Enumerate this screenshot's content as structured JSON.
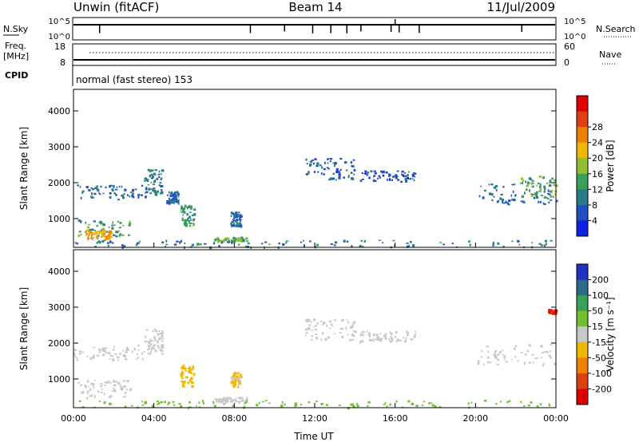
{
  "header": {
    "station": "Unwin (fitACF)",
    "beam": "Beam 14",
    "date": "11/Jul/2009"
  },
  "panels": {
    "nsky": {
      "label": "N.Sky",
      "left_top": "10^5",
      "left_bottom": "10^0",
      "right_top": "10^5",
      "right_bottom": "10^0",
      "right_label": "N.Search"
    },
    "freq": {
      "label_top": "Freq.",
      "label_unit": "[MHz]",
      "left_top": "18",
      "left_bottom": "8",
      "right_top": "60",
      "right_bottom": "0",
      "right_label": "Nave"
    },
    "cpid": {
      "label": "CPID",
      "text": "normal (fast stereo) 153"
    }
  },
  "chart_data": [
    {
      "type": "heatmap",
      "name": "power",
      "ylabel": "Slant Range [km]",
      "y_ticks": [
        1000,
        2000,
        3000,
        4000
      ],
      "ylim": [
        200,
        4600
      ],
      "colorbar": {
        "label": "Power [dB]",
        "ticks": [
          "4",
          "8",
          "12",
          "16",
          "20",
          "24",
          "28"
        ],
        "colors": [
          "#1020e0",
          "#2050c0",
          "#2a7a8a",
          "#38a058",
          "#90c030",
          "#f0b800",
          "#f08000",
          "#e04010",
          "#e00000"
        ]
      },
      "regions": [
        {
          "t0": 0.0,
          "t1": 3.6,
          "r0": 1550,
          "r1": 1950,
          "value": 8
        },
        {
          "t0": 0.2,
          "t1": 2.8,
          "r0": 500,
          "r1": 1000,
          "value": 14
        },
        {
          "t0": 0.6,
          "t1": 1.9,
          "r0": 450,
          "r1": 700,
          "value": 24
        },
        {
          "t0": 3.5,
          "t1": 4.4,
          "r0": 1700,
          "r1": 2400,
          "value": 10
        },
        {
          "t0": 4.6,
          "t1": 5.2,
          "r0": 1450,
          "r1": 1800,
          "value": 7
        },
        {
          "t0": 5.3,
          "t1": 6.0,
          "r0": 800,
          "r1": 1400,
          "value": 13
        },
        {
          "t0": 7.0,
          "t1": 8.6,
          "r0": 380,
          "r1": 500,
          "value": 16
        },
        {
          "t0": 7.8,
          "t1": 8.3,
          "r0": 800,
          "r1": 1200,
          "value": 8
        },
        {
          "t0": 11.5,
          "t1": 14.0,
          "r0": 2100,
          "r1": 2700,
          "value": 7
        },
        {
          "t0": 14.2,
          "t1": 17.0,
          "r0": 2050,
          "r1": 2350,
          "value": 6
        },
        {
          "t0": 20.0,
          "t1": 24.0,
          "r0": 1400,
          "r1": 2000,
          "value": 8
        },
        {
          "t0": 22.2,
          "t1": 24.0,
          "r0": 1600,
          "r1": 2200,
          "value": 14
        },
        {
          "t0": 0.0,
          "t1": 24.0,
          "r0": 220,
          "r1": 420,
          "value": 10
        }
      ]
    },
    {
      "type": "heatmap",
      "name": "velocity",
      "xlabel": "Time UT",
      "ylabel": "Slant Range [km]",
      "x_ticks": [
        "00:00",
        "04:00",
        "08:00",
        "12:00",
        "16:00",
        "20:00",
        "00:00"
      ],
      "xlim": [
        0,
        24
      ],
      "y_ticks": [
        1000,
        2000,
        3000,
        4000
      ],
      "ylim": [
        200,
        4600
      ],
      "colorbar": {
        "label": "Velocity [m s⁻¹]",
        "ticks": [
          "200",
          "100",
          "50",
          "15",
          "-15",
          "-50",
          "-100",
          "-200"
        ],
        "colors": [
          "#2030c0",
          "#2a6a8a",
          "#38a058",
          "#70c030",
          "#c8c8c8",
          "#f0b800",
          "#f08000",
          "#e04010",
          "#e00000"
        ]
      },
      "regions": [
        {
          "t0": 0.0,
          "t1": 3.6,
          "r0": 1550,
          "r1": 1950,
          "value": 0
        },
        {
          "t0": 0.2,
          "t1": 2.8,
          "r0": 500,
          "r1": 1000,
          "value": 0
        },
        {
          "t0": 3.5,
          "t1": 4.4,
          "r0": 1700,
          "r1": 2400,
          "value": 0
        },
        {
          "t0": 5.3,
          "t1": 6.0,
          "r0": 800,
          "r1": 1400,
          "value": -40
        },
        {
          "t0": 7.0,
          "t1": 8.6,
          "r0": 380,
          "r1": 500,
          "value": 0
        },
        {
          "t0": 7.8,
          "t1": 8.3,
          "r0": 800,
          "r1": 1200,
          "value": -20
        },
        {
          "t0": 11.5,
          "t1": 14.0,
          "r0": 2100,
          "r1": 2700,
          "value": 0
        },
        {
          "t0": 14.2,
          "t1": 17.0,
          "r0": 2050,
          "r1": 2350,
          "value": 0
        },
        {
          "t0": 20.0,
          "t1": 24.0,
          "r0": 1400,
          "r1": 2000,
          "value": 0
        },
        {
          "t0": 23.6,
          "t1": 24.0,
          "r0": 2850,
          "r1": 2950,
          "value": -200
        },
        {
          "t0": 0.0,
          "t1": 24.0,
          "r0": 220,
          "r1": 420,
          "value": 30
        }
      ]
    }
  ]
}
